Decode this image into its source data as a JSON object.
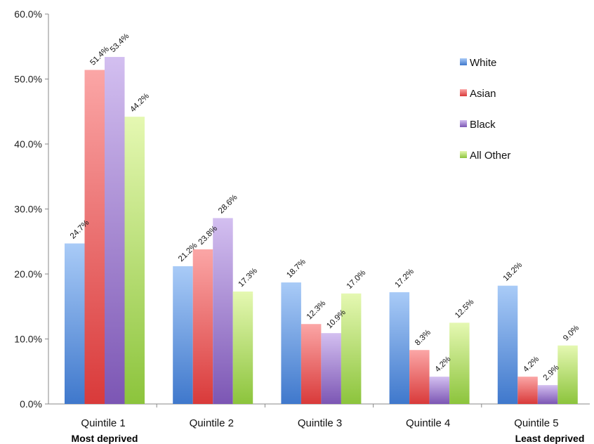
{
  "chart_data": {
    "type": "bar",
    "title": "",
    "xlabel": "",
    "ylabel": "",
    "ylim": [
      0,
      60
    ],
    "y_ticks": [
      "0.0%",
      "10.0%",
      "20.0%",
      "30.0%",
      "40.0%",
      "50.0%",
      "60.0%"
    ],
    "categories": [
      "Quintile 1",
      "Quintile 2",
      "Quintile 3",
      "Quintile 4",
      "Quintile 5"
    ],
    "category_sublabels": {
      "first": "Most deprived",
      "last": "Least deprived"
    },
    "series": [
      {
        "name": "White",
        "values": [
          24.7,
          21.2,
          18.7,
          17.2,
          18.2
        ],
        "labels": [
          "24.7%",
          "21.2%",
          "18.7%",
          "17.2%",
          "18.2%"
        ]
      },
      {
        "name": "Asian",
        "values": [
          51.4,
          23.8,
          12.3,
          8.3,
          4.2
        ],
        "labels": [
          "51.4%",
          "23.8%",
          "12.3%",
          "8.3%",
          "4.2%"
        ]
      },
      {
        "name": "Black",
        "values": [
          53.4,
          28.6,
          10.9,
          4.2,
          2.9
        ],
        "labels": [
          "53.4%",
          "28.6%",
          "10.9%",
          "4.2%",
          "2.9%"
        ]
      },
      {
        "name": "All Other",
        "values": [
          44.2,
          17.3,
          17.0,
          12.5,
          9.0
        ],
        "labels": [
          "44.2%",
          "17.3%",
          "17.0%",
          "12.5%",
          "9.0%"
        ]
      }
    ],
    "colors": {
      "White": [
        "#a9cbf7",
        "#3f78cc"
      ],
      "Asian": [
        "#fba6a6",
        "#d93a3a"
      ],
      "Black": [
        "#d3bff0",
        "#7c56b4"
      ],
      "All Other": [
        "#e5f8b2",
        "#8cc43c"
      ]
    },
    "grid": false,
    "legend_position": "top-right"
  }
}
